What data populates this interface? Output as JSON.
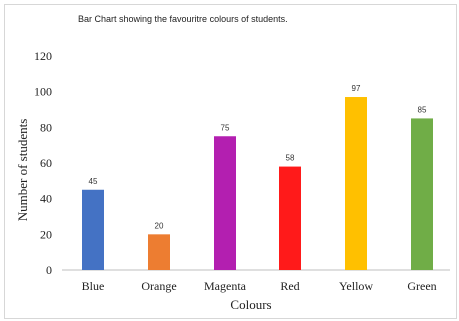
{
  "chart_data": {
    "type": "bar",
    "title": "Bar Chart showing the favouritre colours of students.",
    "xlabel": "Colours",
    "ylabel": "Number of students",
    "categories": [
      "Blue",
      "Orange",
      "Magenta",
      "Red",
      "Yellow",
      "Green"
    ],
    "values": [
      45,
      20,
      75,
      58,
      97,
      85
    ],
    "data_labels": [
      "45",
      "20",
      "75",
      "58",
      "97",
      "85"
    ],
    "colors": [
      "#4472c4",
      "#ed7d31",
      "#b31fb0",
      "#ff1a1a",
      "#ffc000",
      "#70ad47"
    ],
    "yticks": [
      "0",
      "20",
      "40",
      "60",
      "80",
      "100",
      "120"
    ],
    "ylim": [
      0,
      120
    ],
    "grid": false,
    "legend": "none"
  }
}
